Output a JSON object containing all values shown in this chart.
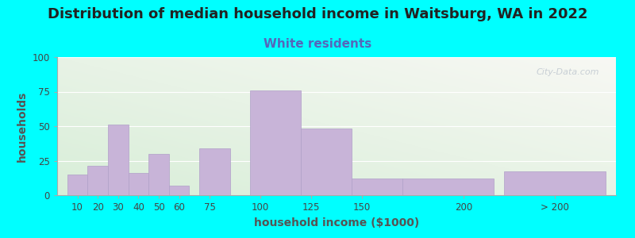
{
  "title": "Distribution of median household income in Waitsburg, WA in 2022",
  "subtitle": "White residents",
  "xlabel": "household income ($1000)",
  "ylabel": "households",
  "background_color": "#00FFFF",
  "bar_color": "#c8b4d8",
  "bar_edge_color": "#b0a0c8",
  "title_fontsize": 13,
  "subtitle_fontsize": 11,
  "subtitle_color": "#5566bb",
  "xlabel_fontsize": 10,
  "ylabel_fontsize": 10,
  "watermark": "City-Data.com",
  "values": [
    15,
    21,
    51,
    16,
    30,
    7,
    34,
    76,
    48,
    12,
    12,
    17
  ],
  "bar_lefts": [
    5,
    15,
    25,
    35,
    45,
    55,
    70,
    95,
    120,
    145,
    170,
    220
  ],
  "bar_widths": [
    10,
    10,
    10,
    10,
    10,
    10,
    15,
    25,
    25,
    25,
    45,
    50
  ],
  "xlim": [
    0,
    275
  ],
  "ylim": [
    0,
    100
  ],
  "yticks": [
    0,
    25,
    50,
    75,
    100
  ],
  "xtick_positions": [
    10,
    20,
    30,
    40,
    50,
    60,
    75,
    100,
    125,
    150,
    200,
    245
  ],
  "xtick_labels": [
    "10",
    "20",
    "30",
    "40",
    "50",
    "60",
    "75",
    "100",
    "125",
    "150",
    "200",
    "> 200"
  ]
}
